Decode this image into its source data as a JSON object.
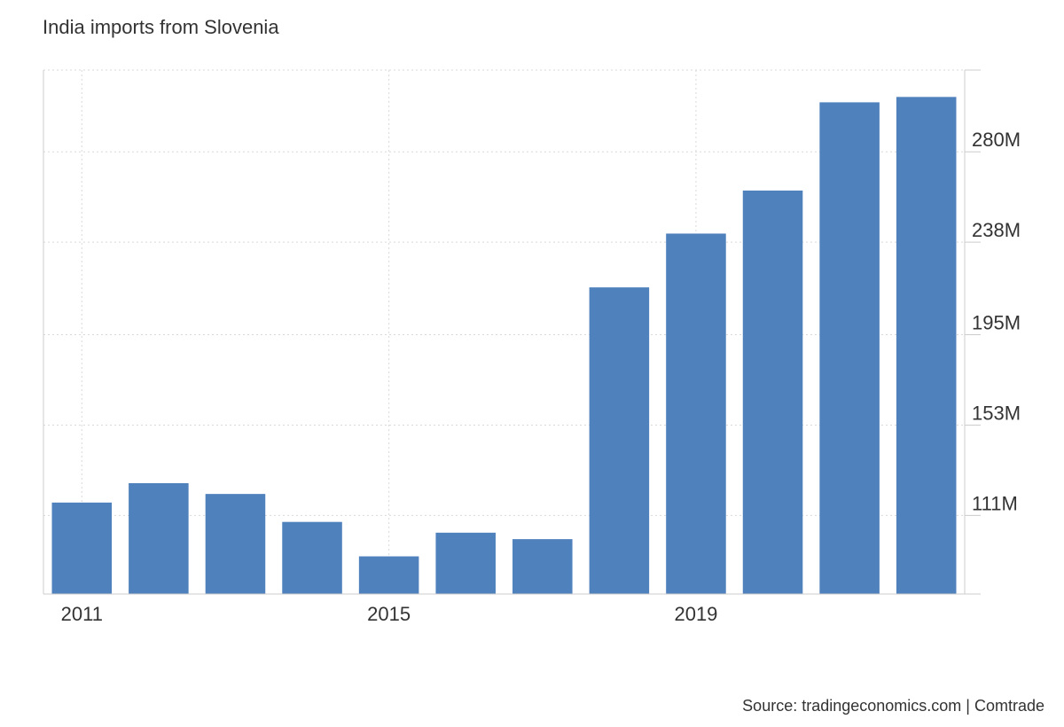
{
  "title": "India imports from Slovenia",
  "source": "Source: tradingeconomics.com | Comtrade",
  "colors": {
    "bar": "#4f81bd",
    "grid": "#d9d9d9",
    "axis": "#cccccc",
    "text": "#333333"
  },
  "chart_data": {
    "type": "bar",
    "x": [
      2011,
      2012,
      2013,
      2014,
      2015,
      2016,
      2017,
      2018,
      2019,
      2020,
      2021,
      2022
    ],
    "values": [
      117,
      126,
      121,
      108,
      92,
      103,
      100,
      217,
      242,
      262,
      303,
      305.5
    ],
    "value_unit": "USD millions",
    "x_tick_labels": [
      "2011",
      "2015",
      "2019"
    ],
    "y_ticks": [
      111,
      153,
      195,
      238,
      280
    ],
    "y_tick_labels": [
      "111M",
      "153M",
      "195M",
      "238M",
      "280M"
    ],
    "ylim": [
      74.5,
      318
    ],
    "y_axis_position": "right",
    "grid": true,
    "legend": "none"
  }
}
